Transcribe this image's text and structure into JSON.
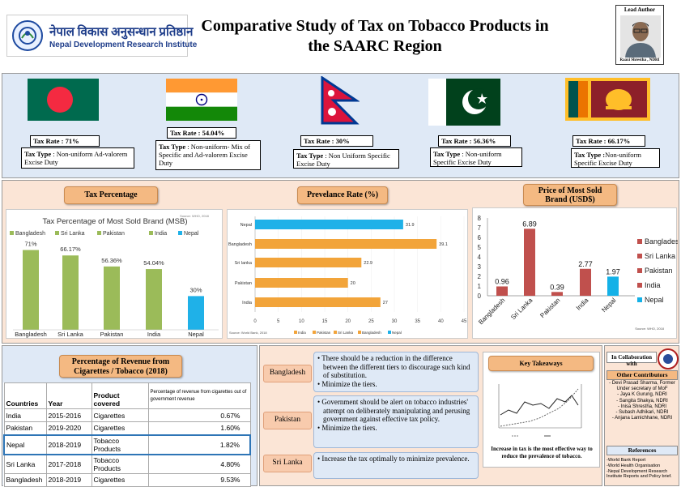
{
  "header": {
    "logo_hindi": "नेपाल विकास अनुसन्धान प्रतिष्ठान",
    "logo_english": "Nepal Development Research Institute",
    "title_line1": "Comparative Study of Tax on Tobacco Products in",
    "title_line2": "the SAARC Region",
    "lead_label": "Lead Author",
    "lead_name": "Raaxi Shrestha , NDRI"
  },
  "countries": [
    {
      "flag": "bangladesh-flag",
      "rate": "Tax Rate : 71%",
      "type_label": "Tax Type",
      "type_text": " : Non-uniform Ad-valorem Excise Duty"
    },
    {
      "flag": "india-flag",
      "rate": "Tax Rate : 54.04%",
      "type_label": "Tax Type",
      "type_text": " : Non-uniform- Mix of Specific and Ad-valorem Excise Duty"
    },
    {
      "flag": "nepal-flag",
      "rate": "Tax Rate : 30%",
      "type_label": "Tax Type",
      "type_text": " : Non Uniform Specific Excise Duty"
    },
    {
      "flag": "pakistan-flag",
      "rate": "Tax Rate : 56.36%",
      "type_label": "Tax Type",
      "type_text": " : Non-uniform Specific Excise  Duty"
    },
    {
      "flag": "srilanka-flag",
      "rate": "Tax Rate : 66.17%",
      "type_label": "Tax Type :",
      "type_text": "Non-uniform Specific Excise Duty"
    }
  ],
  "section_buttons": {
    "tax_percentage": "Tax Percentage",
    "prevalence_rate": "Prevelance Rate (%)",
    "price_line1": "Price of Most Sold",
    "price_line2": "Brand (USD$)"
  },
  "colors": {
    "bangladesh": "#c0504d",
    "srilanka": "#9ebb56",
    "pakistan": "#7f62a2",
    "india": "#4bacc6",
    "nepal": "#14b1e7",
    "green_bar": "#9bbb59",
    "blue_bar": "#1fb1e8",
    "orange_bar": "#f2a43a"
  },
  "chart_data": [
    {
      "type": "bar",
      "title": "Tax Percentage of Most Sold Brand (MSB)",
      "source": "Source: WHO, 2018",
      "categories": [
        "Bangladesh",
        "Sri Lanka",
        "Pakistan",
        "India",
        "Nepal"
      ],
      "values": [
        71,
        66.17,
        56.36,
        54.04,
        30
      ],
      "data_labels": [
        "71%",
        "66.17%",
        "56.36%",
        "54.04%",
        "30%"
      ],
      "legend": [
        "Bangladesh",
        "Sri Lanka",
        "Pakistan",
        "India",
        "Nepal"
      ],
      "legend_position": "top"
    },
    {
      "type": "bar",
      "orientation": "horizontal",
      "categories": [
        "Nepal",
        "Bangladesh",
        "Sri lanka",
        "Pakistan",
        "India"
      ],
      "values": [
        31.9,
        39.1,
        22.9,
        20,
        27
      ],
      "data_labels": [
        "31.9",
        "39.1",
        "22.9",
        "20",
        "27"
      ],
      "x_ticks": [
        "0",
        "5",
        "10",
        "15",
        "20",
        "25",
        "30",
        "35",
        "40",
        "45"
      ],
      "xlim": [
        0,
        45
      ],
      "source": "Source: World Bank, 2018",
      "legend": [
        "India",
        "Pakistan",
        "Sri Lanka",
        "Bangladesh",
        "Nepal"
      ],
      "legend_position": "bottom"
    },
    {
      "type": "bar",
      "categories": [
        "Bangladesh",
        "Sri Lanka",
        "Pakistan",
        "India",
        "Nepal"
      ],
      "values": [
        0.96,
        6.89,
        0.39,
        2.77,
        1.97
      ],
      "data_labels": [
        "0.96",
        "6.89",
        "0.39",
        "2.77",
        "1.97"
      ],
      "y_ticks": [
        "0",
        "1",
        "2",
        "3",
        "4",
        "5",
        "6",
        "7",
        "8"
      ],
      "ylim": [
        0,
        8
      ],
      "source": "Source: WHO, 2018",
      "legend": [
        "Bangladesh",
        "Sri Lanka",
        "Pakistan",
        "India",
        "Nepal"
      ],
      "legend_position": "right"
    }
  ],
  "revenue": {
    "title_line1": "Percentage of Revenue from",
    "title_line2": "Cigarettes / Tobacco (2018)",
    "headers": [
      "Countries",
      "Year",
      "Product covered",
      "Percentage of  revenue from cigarettes out of government revenue"
    ],
    "rows": [
      [
        "India",
        "2015-2016",
        "Cigarettes",
        "0.67%"
      ],
      [
        "Pakistan",
        "2019-2020",
        "Cigarettes",
        "1.60%"
      ],
      [
        "Nepal",
        "2018-2019",
        "Tobacco Products",
        "1.82%"
      ],
      [
        "Sri Lanka",
        "2017-2018",
        "Tobacco Products",
        "4.80%"
      ],
      [
        "Bangladesh",
        "2018-2019",
        "Cigarettes",
        "9.53%"
      ]
    ]
  },
  "recommendations": [
    {
      "country": "Bangladesh",
      "points": [
        "There should be a reduction in the difference between the different tiers to discourage such kind of substitution.",
        "Minimize the tiers."
      ]
    },
    {
      "country": "Pakistan",
      "points": [
        "Government should be alert on tobacco industries' attempt on deliberately manipulating and perusing government against effective tax policy.",
        "Minimize the tiers."
      ]
    },
    {
      "country": "Sri Lanka",
      "points": [
        "Increase the tax optimally to minimize prevalence."
      ]
    }
  ],
  "takeaways": {
    "title": "Key Takeaways",
    "text": "Increase in tax is the most effective way to reduce the prevalence of tobacco."
  },
  "sidebar": {
    "collab_label": "In Collaboration with",
    "contributors_title": "Other Contributors",
    "contributors": [
      "- Devi Prasad Sharma, Former Under secretary of MoF",
      "- Jaya K Gurung, NDRI",
      "- Sangita Shakya, NDRI",
      "- Inisa Shrestha, NDRI",
      "- Subash Adhikari, NDRI",
      "- Anjana Lamichhane, NDRI"
    ],
    "references_title": "References",
    "references": [
      "-World Bank Report",
      "-World Health Organisation",
      "-Nepal Development Research Institute Reports and Policy brief."
    ]
  }
}
